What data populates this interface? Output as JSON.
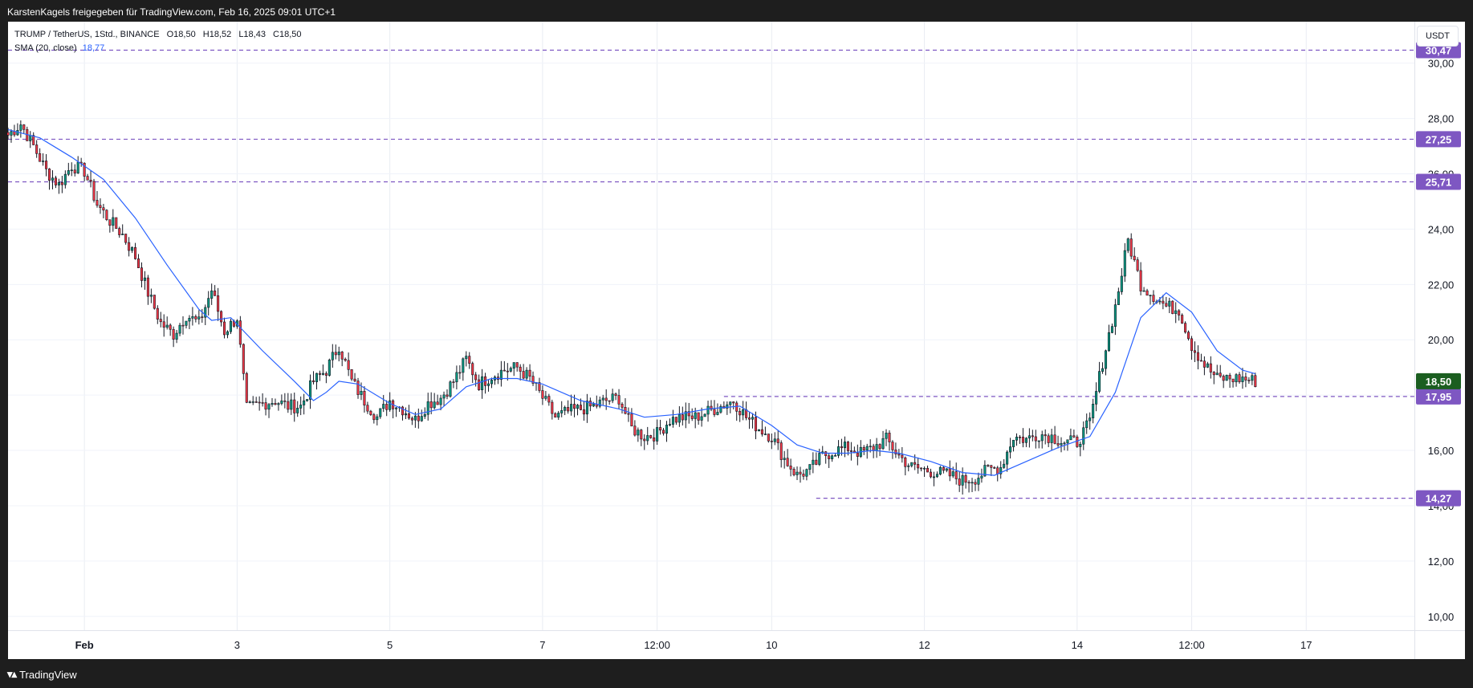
{
  "header": {
    "text": "KarstenKagels freigegeben für TradingView.com, Feb 16, 2025 09:01 UTC+1"
  },
  "footer": {
    "brand": "TradingView",
    "logo_icon": "tradingview-logo-icon"
  },
  "legend": {
    "symbol": "TRUMP / TetherUS, 1Std., BINANCE",
    "o": "O18,50",
    "h": "H18,52",
    "l": "L18,43",
    "c": "C18,50",
    "sma_label": "SMA (20, close)",
    "sma_value": "18,77"
  },
  "currency": "USDT",
  "colors": {
    "up": "#089981",
    "down": "#f23645",
    "candle_body": "#131722",
    "sma": "#2962ff",
    "hline": "#7e57c2",
    "price_tag": "#1b5e20"
  },
  "chart_data": {
    "type": "candlestick",
    "title": "",
    "ylim": [
      9.5,
      31.5
    ],
    "y_ticks": [
      "10,00",
      "12,00",
      "14,00",
      "16,00",
      "18,00",
      "20,00",
      "22,00",
      "24,00",
      "26,00",
      "28,00",
      "30,00"
    ],
    "y_tick_values": [
      10,
      12,
      14,
      16,
      18,
      20,
      22,
      24,
      26,
      28,
      30
    ],
    "x_labels": [
      {
        "t": 24,
        "label": "Feb"
      },
      {
        "t": 72,
        "label": "3"
      },
      {
        "t": 120,
        "label": "5"
      },
      {
        "t": 168,
        "label": "7"
      },
      {
        "t": 204,
        "label": "12:00"
      },
      {
        "t": 240,
        "label": "10"
      },
      {
        "t": 288,
        "label": "12"
      },
      {
        "t": 336,
        "label": "14"
      },
      {
        "t": 372,
        "label": "12:00"
      },
      {
        "t": 408,
        "label": "17"
      }
    ],
    "price_tags": [
      {
        "label": "30,47",
        "value": 30.47
      },
      {
        "label": "27,25",
        "value": 27.25
      },
      {
        "label": "25,71",
        "value": 25.71
      },
      {
        "label": "17,95",
        "value": 17.95
      },
      {
        "label": "14,27",
        "value": 14.27
      }
    ],
    "current_price": {
      "label": "18,50",
      "value": 18.5
    },
    "hlines": [
      {
        "value": 30.47,
        "t_start": 0
      },
      {
        "value": 27.25,
        "t_start": 0
      },
      {
        "value": 25.71,
        "t_start": 0
      },
      {
        "value": 17.95,
        "t_start": 225
      },
      {
        "value": 14.27,
        "t_start": 254
      }
    ],
    "anchors": [
      [
        0,
        27.4
      ],
      [
        4,
        27.8
      ],
      [
        8,
        27.0
      ],
      [
        12,
        26.1
      ],
      [
        16,
        25.6
      ],
      [
        20,
        26.3
      ],
      [
        24,
        26.1
      ],
      [
        28,
        24.9
      ],
      [
        32,
        24.3
      ],
      [
        36,
        23.8
      ],
      [
        40,
        23.0
      ],
      [
        44,
        21.7
      ],
      [
        48,
        20.6
      ],
      [
        52,
        20.2
      ],
      [
        56,
        20.9
      ],
      [
        60,
        20.6
      ],
      [
        64,
        21.8
      ],
      [
        68,
        20.3
      ],
      [
        72,
        20.8
      ],
      [
        75,
        17.5
      ],
      [
        80,
        17.7
      ],
      [
        84,
        17.8
      ],
      [
        88,
        17.6
      ],
      [
        92,
        17.6
      ],
      [
        96,
        18.5
      ],
      [
        100,
        18.9
      ],
      [
        104,
        19.8
      ],
      [
        108,
        18.5
      ],
      [
        112,
        17.8
      ],
      [
        116,
        17.2
      ],
      [
        120,
        17.8
      ],
      [
        124,
        17.5
      ],
      [
        128,
        17.1
      ],
      [
        132,
        17.7
      ],
      [
        136,
        17.9
      ],
      [
        140,
        18.5
      ],
      [
        144,
        19.3
      ],
      [
        148,
        18.4
      ],
      [
        152,
        18.7
      ],
      [
        156,
        18.9
      ],
      [
        160,
        19.0
      ],
      [
        164,
        18.6
      ],
      [
        168,
        17.9
      ],
      [
        172,
        17.2
      ],
      [
        176,
        17.4
      ],
      [
        180,
        17.5
      ],
      [
        184,
        17.6
      ],
      [
        188,
        17.8
      ],
      [
        192,
        17.9
      ],
      [
        196,
        16.8
      ],
      [
        200,
        16.5
      ],
      [
        204,
        16.6
      ],
      [
        208,
        17.1
      ],
      [
        212,
        17.2
      ],
      [
        216,
        17.2
      ],
      [
        220,
        17.4
      ],
      [
        224,
        17.6
      ],
      [
        228,
        17.8
      ],
      [
        232,
        17.2
      ],
      [
        236,
        16.8
      ],
      [
        240,
        16.5
      ],
      [
        244,
        15.7
      ],
      [
        248,
        15.1
      ],
      [
        252,
        15.3
      ],
      [
        256,
        15.8
      ],
      [
        260,
        16.0
      ],
      [
        264,
        16.1
      ],
      [
        268,
        15.9
      ],
      [
        272,
        16.1
      ],
      [
        276,
        16.4
      ],
      [
        280,
        15.8
      ],
      [
        284,
        15.4
      ],
      [
        288,
        15.3
      ],
      [
        292,
        15.2
      ],
      [
        296,
        15.1
      ],
      [
        300,
        14.9
      ],
      [
        304,
        15.0
      ],
      [
        308,
        15.3
      ],
      [
        312,
        15.4
      ],
      [
        316,
        16.5
      ],
      [
        320,
        16.4
      ],
      [
        324,
        16.6
      ],
      [
        328,
        16.5
      ],
      [
        332,
        16.3
      ],
      [
        336,
        16.3
      ],
      [
        340,
        17.0
      ],
      [
        344,
        19.2
      ],
      [
        348,
        21.2
      ],
      [
        352,
        23.6
      ],
      [
        356,
        22.0
      ],
      [
        360,
        21.6
      ],
      [
        364,
        21.2
      ],
      [
        368,
        21.1
      ],
      [
        372,
        19.8
      ],
      [
        376,
        19.1
      ],
      [
        380,
        18.6
      ],
      [
        384,
        18.6
      ],
      [
        388,
        18.6
      ],
      [
        392,
        18.5
      ]
    ],
    "sma": [
      [
        0,
        27.6
      ],
      [
        10,
        27.3
      ],
      [
        20,
        26.6
      ],
      [
        30,
        25.8
      ],
      [
        40,
        24.4
      ],
      [
        50,
        22.7
      ],
      [
        60,
        21.1
      ],
      [
        64,
        20.7
      ],
      [
        70,
        20.8
      ],
      [
        80,
        19.6
      ],
      [
        90,
        18.5
      ],
      [
        96,
        17.8
      ],
      [
        100,
        18.1
      ],
      [
        104,
        18.5
      ],
      [
        110,
        18.4
      ],
      [
        120,
        17.7
      ],
      [
        128,
        17.3
      ],
      [
        136,
        17.5
      ],
      [
        144,
        18.3
      ],
      [
        152,
        18.6
      ],
      [
        160,
        18.6
      ],
      [
        168,
        18.4
      ],
      [
        180,
        17.8
      ],
      [
        192,
        17.5
      ],
      [
        200,
        17.2
      ],
      [
        210,
        17.3
      ],
      [
        220,
        17.5
      ],
      [
        230,
        17.6
      ],
      [
        240,
        16.9
      ],
      [
        248,
        16.2
      ],
      [
        256,
        15.9
      ],
      [
        264,
        15.9
      ],
      [
        272,
        16.0
      ],
      [
        280,
        15.9
      ],
      [
        290,
        15.6
      ],
      [
        300,
        15.2
      ],
      [
        310,
        15.1
      ],
      [
        318,
        15.5
      ],
      [
        330,
        16.1
      ],
      [
        340,
        16.5
      ],
      [
        348,
        18.1
      ],
      [
        356,
        20.8
      ],
      [
        364,
        21.7
      ],
      [
        372,
        21.0
      ],
      [
        380,
        19.6
      ],
      [
        388,
        18.9
      ],
      [
        392,
        18.77
      ]
    ]
  }
}
